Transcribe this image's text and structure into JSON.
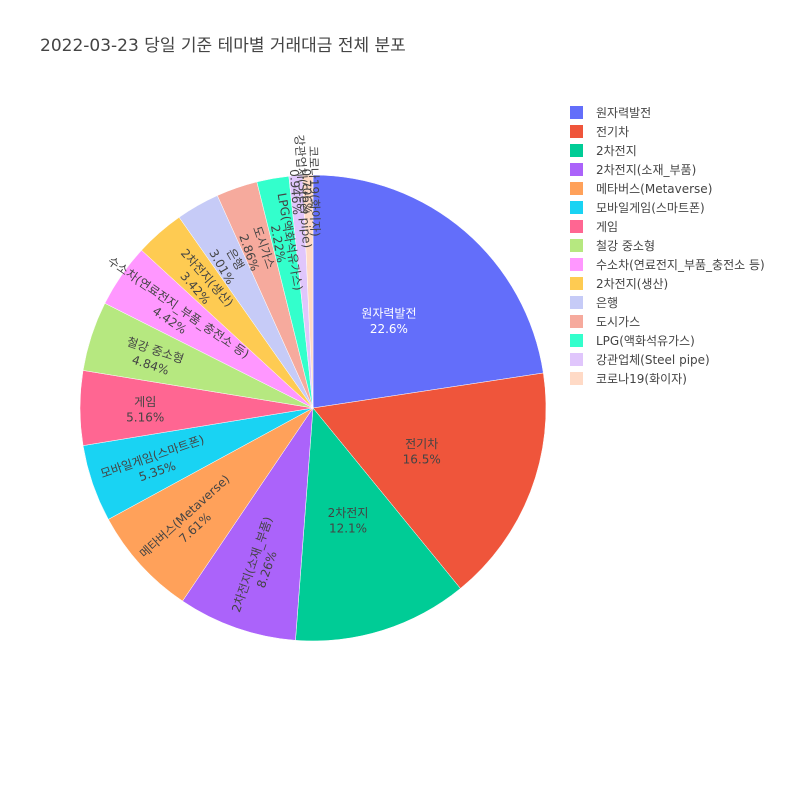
{
  "chart_data": {
    "type": "pie",
    "title": "2022-03-23 당일 기준 테마별 거래대금 전체 분포",
    "legend_position": "right",
    "slices": [
      {
        "label": "원자력발전",
        "value": 22.6,
        "text": "22.6%",
        "color": "#636efa"
      },
      {
        "label": "전기차",
        "value": 16.5,
        "text": "16.5%",
        "color": "#ef553b"
      },
      {
        "label": "2차전지",
        "value": 12.1,
        "text": "12.1%",
        "color": "#00cc96"
      },
      {
        "label": "2차전지(소재_부품)",
        "value": 8.26,
        "text": "8.26%",
        "color": "#ab63fa"
      },
      {
        "label": "메타버스(Metaverse)",
        "value": 7.61,
        "text": "7.61%",
        "color": "#ffa15a"
      },
      {
        "label": "모바일게임(스마트폰)",
        "value": 5.35,
        "text": "5.35%",
        "color": "#19d3f3"
      },
      {
        "label": "게임",
        "value": 5.16,
        "text": "5.16%",
        "color": "#ff6692"
      },
      {
        "label": "철강 중소형",
        "value": 4.84,
        "text": "4.84%",
        "color": "#b6e880"
      },
      {
        "label": "수소차(연료전지_부품_충전소 등)",
        "value": 4.42,
        "text": "4.42%",
        "color": "#ff97ff"
      },
      {
        "label": "2차전지(생산)",
        "value": 3.42,
        "text": "3.42%",
        "color": "#fecb52"
      },
      {
        "label": "은행",
        "value": 3.01,
        "text": "3.01%",
        "color": "#c6cbf7"
      },
      {
        "label": "도시가스",
        "value": 2.86,
        "text": "2.86%",
        "color": "#f6aa9d"
      },
      {
        "label": "LPG(액화석유가스)",
        "value": 2.22,
        "text": "2.22%",
        "color": "#33ffcc"
      },
      {
        "label": "강관업체(Steel pipe)",
        "value": 0.946,
        "text": "0.946%",
        "color": "#e0c6fc"
      },
      {
        "label": "코로나19(화이자)",
        "value": 0.706,
        "text": "0.706%",
        "color": "#ffdac6"
      }
    ]
  }
}
